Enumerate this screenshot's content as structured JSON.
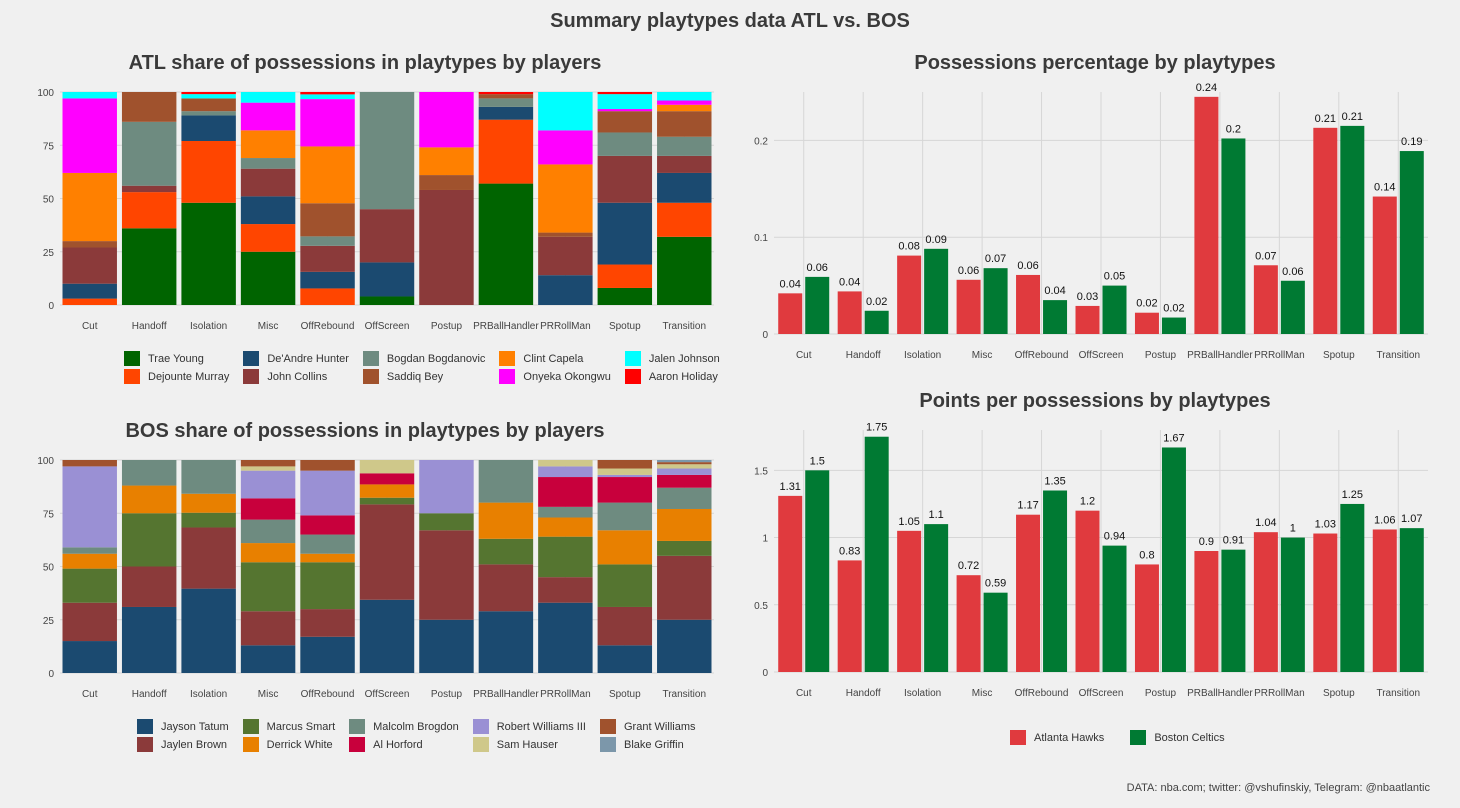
{
  "title": "Summary playtypes data ATL vs. BOS",
  "footer": "DATA: nba.com; twitter: @vshufinskiy, Telegram: @nbaatlantic",
  "categories": [
    "Cut",
    "Handoff",
    "Isolation",
    "Misc",
    "OffRebound",
    "OffScreen",
    "Postup",
    "PRBallHandler",
    "PRRollMan",
    "Spotup",
    "Transition"
  ],
  "chart_data": [
    {
      "id": "atl_share",
      "type": "bar",
      "stacked": true,
      "title": "ATL share of possessions in playtypes by players",
      "xlabel": "",
      "ylabel": "",
      "ylim": [
        0,
        100
      ],
      "yticks": [
        0,
        25,
        50,
        75,
        100
      ],
      "grid": true,
      "legend_position": "bottom",
      "series": [
        {
          "name": "Trae Young",
          "color": "#006400",
          "values": [
            0,
            36,
            48,
            25,
            0,
            4,
            0,
            57,
            0,
            8,
            32
          ]
        },
        {
          "name": "Dejounte Murray",
          "color": "#ff4500",
          "values": [
            3,
            17,
            29,
            13,
            7,
            0,
            0,
            30,
            0,
            11,
            16
          ]
        },
        {
          "name": "De'Andre Hunter",
          "color": "#1b4a70",
          "values": [
            7,
            0,
            12,
            13,
            7,
            16,
            0,
            6,
            14,
            29,
            14
          ]
        },
        {
          "name": "John Collins",
          "color": "#8b3a3a",
          "values": [
            17,
            3,
            0,
            13,
            11,
            25,
            54,
            0,
            18,
            22,
            8
          ]
        },
        {
          "name": "Bogdan Bogdanovic",
          "color": "#6e8b80",
          "values": [
            0,
            30,
            2,
            5,
            4,
            55,
            0,
            4,
            0,
            11,
            9
          ]
        },
        {
          "name": "Saddiq Bey",
          "color": "#a0522d",
          "values": [
            3,
            14,
            6,
            0,
            14,
            0,
            7,
            2,
            2,
            10,
            12
          ]
        },
        {
          "name": "Clint Capela",
          "color": "#ff8000",
          "values": [
            32,
            0,
            0,
            13,
            24,
            0,
            13,
            0,
            32,
            0,
            3
          ]
        },
        {
          "name": "Onyeka Okongwu",
          "color": "#ff00ff",
          "values": [
            35,
            0,
            0,
            13,
            20,
            0,
            26,
            0,
            16,
            1,
            2
          ]
        },
        {
          "name": "Jalen Johnson",
          "color": "#00ffff",
          "values": [
            3,
            0,
            2,
            5,
            2,
            0,
            0,
            0,
            18,
            7,
            4
          ]
        },
        {
          "name": "Aaron Holiday",
          "color": "#ff0000",
          "values": [
            0,
            0,
            1,
            0,
            1,
            0,
            0,
            1,
            0,
            1,
            0
          ]
        }
      ]
    },
    {
      "id": "bos_share",
      "type": "bar",
      "stacked": true,
      "title": "BOS share of possessions in playtypes by players",
      "xlabel": "",
      "ylabel": "",
      "ylim": [
        0,
        100
      ],
      "yticks": [
        0,
        25,
        50,
        75,
        100
      ],
      "grid": true,
      "legend_position": "bottom",
      "series": [
        {
          "name": "Jayson Tatum",
          "color": "#1b4a70",
          "values": [
            15,
            31,
            40,
            13,
            17,
            33,
            25,
            29,
            33,
            13,
            25
          ]
        },
        {
          "name": "Jaylen Brown",
          "color": "#8b3a3a",
          "values": [
            18,
            19,
            29,
            16,
            13,
            43,
            42,
            22,
            12,
            18,
            30
          ]
        },
        {
          "name": "Marcus Smart",
          "color": "#557530",
          "values": [
            16,
            25,
            7,
            23,
            22,
            3,
            8,
            12,
            19,
            20,
            7
          ]
        },
        {
          "name": "Derrick White",
          "color": "#e88000",
          "values": [
            7,
            13,
            9,
            9,
            4,
            6,
            0,
            17,
            9,
            16,
            15
          ]
        },
        {
          "name": "Malcolm Brogdon",
          "color": "#6e8b80",
          "values": [
            3,
            12,
            16,
            11,
            9,
            0,
            0,
            20,
            5,
            13,
            10
          ]
        },
        {
          "name": "Al Horford",
          "color": "#c8003c",
          "values": [
            0,
            0,
            0,
            10,
            9,
            5,
            0,
            0,
            14,
            12,
            6
          ]
        },
        {
          "name": "Robert Williams III",
          "color": "#9a90d4",
          "values": [
            38,
            0,
            0,
            13,
            21,
            0,
            25,
            0,
            5,
            1,
            3
          ]
        },
        {
          "name": "Sam Hauser",
          "color": "#cfc88a",
          "values": [
            0,
            0,
            0,
            2,
            0,
            6,
            0,
            0,
            3,
            3,
            2
          ]
        },
        {
          "name": "Grant Williams",
          "color": "#a0522d",
          "values": [
            3,
            0,
            0,
            3,
            5,
            0,
            0,
            0,
            0,
            4,
            1
          ]
        },
        {
          "name": "Blake Griffin",
          "color": "#7c97aa",
          "values": [
            0,
            0,
            0,
            0,
            0,
            0,
            0,
            0,
            0,
            0,
            1
          ]
        }
      ]
    },
    {
      "id": "poss_pct",
      "type": "bar",
      "stacked": false,
      "title": "Possessions percentage by playtypes",
      "xlabel": "",
      "ylabel": "",
      "ylim": [
        0,
        0.25
      ],
      "yticks": [
        0.0,
        0.1,
        0.2
      ],
      "grid": true,
      "series": [
        {
          "name": "Atlanta Hawks",
          "color": "#e03a3e",
          "values": [
            0.04,
            0.04,
            0.08,
            0.06,
            0.06,
            0.03,
            0.02,
            0.24,
            0.07,
            0.21,
            0.14
          ],
          "heights": [
            0.042,
            0.044,
            0.081,
            0.056,
            0.061,
            0.029,
            0.022,
            0.245,
            0.071,
            0.213,
            0.142
          ]
        },
        {
          "name": "Boston Celtics",
          "color": "#007a33",
          "values": [
            0.06,
            0.02,
            0.09,
            0.07,
            0.04,
            0.05,
            0.02,
            0.2,
            0.06,
            0.21,
            0.19
          ],
          "heights": [
            0.059,
            0.024,
            0.088,
            0.068,
            0.035,
            0.05,
            0.017,
            0.202,
            0.055,
            0.215,
            0.189
          ]
        }
      ]
    },
    {
      "id": "ppp",
      "type": "bar",
      "stacked": false,
      "title": "Points per possessions by playtypes",
      "xlabel": "",
      "ylabel": "",
      "ylim": [
        0,
        1.8
      ],
      "yticks": [
        0.0,
        0.5,
        1.0,
        1.5
      ],
      "grid": true,
      "legend_position": "bottom",
      "series": [
        {
          "name": "Atlanta Hawks",
          "color": "#e03a3e",
          "values": [
            1.31,
            0.83,
            1.05,
            0.72,
            1.17,
            1.2,
            0.8,
            0.9,
            1.04,
            1.03,
            1.06
          ]
        },
        {
          "name": "Boston Celtics",
          "color": "#007a33",
          "values": [
            1.5,
            1.75,
            1.1,
            0.59,
            1.35,
            0.94,
            1.67,
            0.91,
            1,
            1.25,
            1.07
          ]
        }
      ]
    }
  ]
}
